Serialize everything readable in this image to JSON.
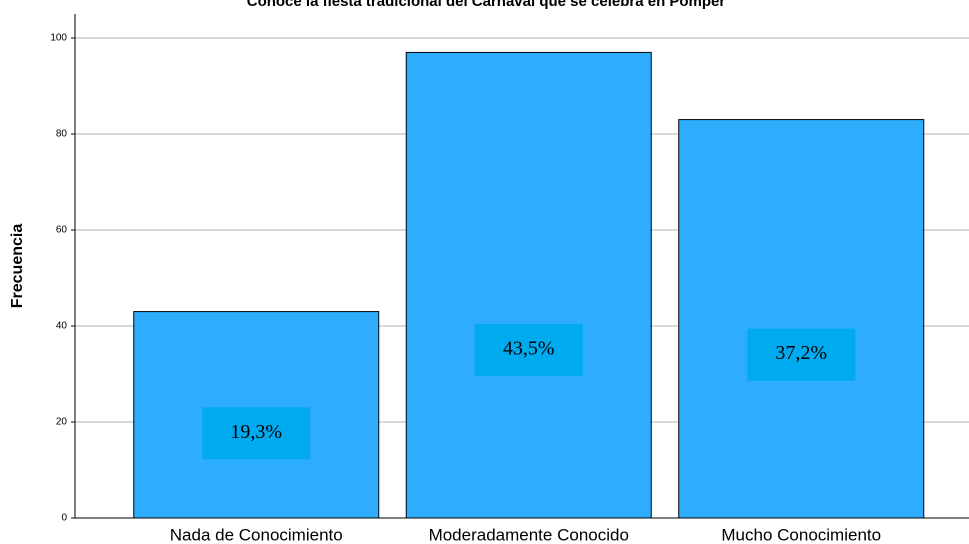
{
  "chart_data": {
    "type": "bar",
    "title": "Conoce la fiesta tradicional del Carnaval que se celebra en Pomper",
    "ylabel": "Frecuencia",
    "categories": [
      "Nada de Conocimiento",
      "Moderadamente Conocido",
      "Mucho Conocimiento"
    ],
    "values": [
      43,
      97,
      83
    ],
    "percent_values": [
      19.3,
      43.5,
      37.2
    ],
    "percent_labels": [
      "19,3%",
      "43,5%",
      "37,2%"
    ],
    "color": "#2eadfe",
    "label_box_color": "#00aaee",
    "ylim": [
      0,
      105
    ],
    "yticks": [
      0,
      20,
      40,
      60,
      80,
      100
    ],
    "grid": true
  }
}
